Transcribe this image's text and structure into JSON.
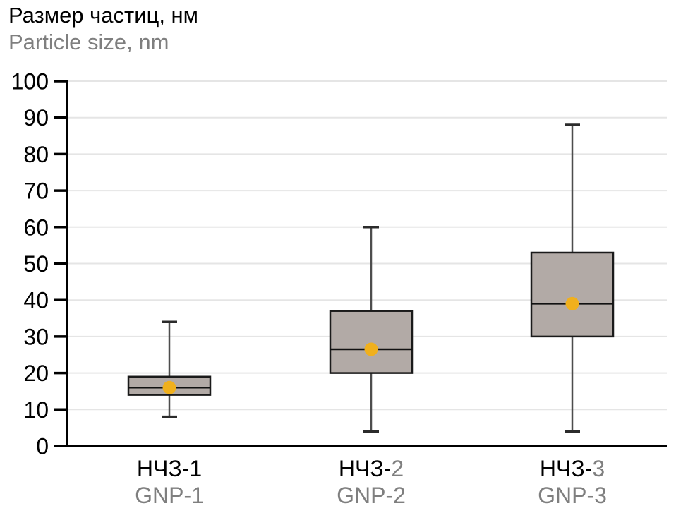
{
  "chart": {
    "title_ru": "Размер частиц, нм",
    "title_en": "Particle size, nm"
  },
  "chart_data": {
    "type": "box",
    "title": "Размер частиц, нм",
    "subtitle": "Particle size, nm",
    "ylabel": "Размер частиц, нм / Particle size, nm",
    "ylim": [
      0,
      100
    ],
    "yticks": [
      0,
      10,
      20,
      30,
      40,
      50,
      60,
      70,
      80,
      90,
      100
    ],
    "grid": true,
    "legend": "none",
    "categories": [
      {
        "label_ru_prefix": "НЧЗ-",
        "label_ru_num": "1",
        "label_ru_num_gray": false,
        "label_en": "GNP-1"
      },
      {
        "label_ru_prefix": "НЧЗ-",
        "label_ru_num": "2",
        "label_ru_num_gray": true,
        "label_en": "GNP-2"
      },
      {
        "label_ru_prefix": "НЧЗ-",
        "label_ru_num": "3",
        "label_ru_num_gray": true,
        "label_en": "GNP-3"
      }
    ],
    "series": [
      {
        "name": "НЧЗ-1 / GNP-1",
        "whisker_low": 8,
        "q1": 14,
        "median": 16,
        "q3": 19,
        "whisker_high": 34,
        "mean": 16
      },
      {
        "name": "НЧЗ-2 / GNP-2",
        "whisker_low": 4,
        "q1": 20,
        "median": 26.5,
        "q3": 37,
        "whisker_high": 60,
        "mean": 26.5
      },
      {
        "name": "НЧЗ-3 / GNP-3",
        "whisker_low": 4,
        "q1": 30,
        "median": 39,
        "q3": 53,
        "whisker_high": 88,
        "mean": 39
      }
    ],
    "colors": {
      "box_fill": "#b2aaa6",
      "box_border": "#1a1a1a",
      "median_line": "#111111",
      "whisker": "#4d4d4d",
      "whisker_cap": "#2b2b2b",
      "mean_dot": "#f0b01d",
      "gridline": "#e5e5e5",
      "axis": "#000000",
      "text_primary": "#000000",
      "text_secondary": "#7f7f7f"
    }
  }
}
